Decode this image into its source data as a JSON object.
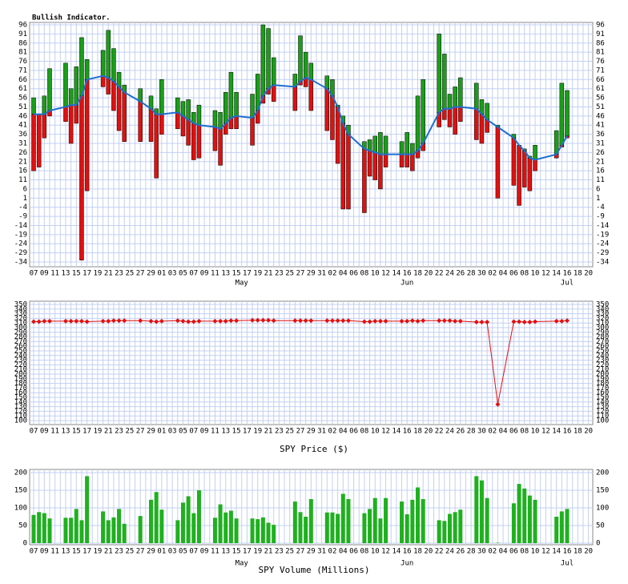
{
  "chart_data": [
    {
      "type": "range-bar",
      "title": "Bullish Indicator.",
      "categories": [
        "07",
        null,
        "09",
        null,
        "11",
        null,
        "13",
        null,
        "15",
        null,
        "17",
        null,
        "19",
        null,
        "21",
        null,
        "23",
        null,
        "25",
        null,
        "27",
        null,
        "29",
        null,
        "01",
        null,
        "03",
        null,
        "05",
        null,
        "07",
        null,
        "09",
        null,
        "11",
        null,
        "13",
        null,
        "15",
        null,
        "17",
        null,
        "19",
        null,
        "21",
        null,
        "23",
        null,
        "25",
        null,
        "27",
        null,
        "29",
        null,
        "31",
        null,
        "02",
        null,
        "04",
        null,
        "06",
        null,
        "08",
        null,
        "10",
        null,
        "12",
        null,
        "14",
        null,
        "16",
        null,
        "18",
        null,
        "20",
        null,
        "22",
        null,
        "24",
        null,
        "26",
        null,
        "28",
        null,
        "30",
        null,
        "02",
        null,
        "04",
        null,
        "06",
        null,
        "08",
        null,
        "10",
        null,
        "12",
        null,
        "14",
        null,
        "16",
        null,
        "18",
        null,
        "20"
      ],
      "months": [
        "May",
        "Jun",
        "Jul"
      ],
      "series": [
        {
          "color": "#1a9e1a",
          "values": [
            56,
            47,
            57,
            72,
            null,
            null,
            75,
            61,
            73,
            89,
            77,
            null,
            null,
            82,
            93,
            83,
            70,
            63,
            null,
            null,
            61,
            null,
            57,
            50,
            66,
            null,
            null,
            56,
            54,
            55,
            48,
            52,
            null,
            null,
            49,
            48,
            59,
            70,
            59,
            null,
            null,
            58,
            69,
            96,
            94,
            78,
            null,
            null,
            null,
            69,
            90,
            81,
            75,
            null,
            null,
            68,
            66,
            52,
            46,
            41,
            null,
            null,
            32,
            33,
            35,
            37,
            35,
            null,
            null,
            32,
            37,
            31,
            57,
            66,
            null,
            null,
            91,
            80,
            58,
            62,
            67,
            null,
            null,
            64,
            55,
            53,
            null,
            41,
            null,
            null,
            36,
            29,
            28,
            24,
            30,
            null,
            null,
            null,
            38,
            64,
            60,
            null,
            null,
            null,
            null
          ]
        },
        {
          "color": "#e01010",
          "values": [
            16,
            18,
            34,
            46,
            null,
            null,
            43,
            31,
            42,
            -33,
            5,
            null,
            null,
            62,
            58,
            49,
            38,
            32,
            null,
            null,
            32,
            null,
            32,
            12,
            36,
            null,
            null,
            39,
            35,
            30,
            22,
            23,
            null,
            null,
            27,
            19,
            36,
            39,
            39,
            null,
            null,
            30,
            42,
            53,
            58,
            54,
            null,
            null,
            null,
            49,
            63,
            62,
            49,
            null,
            null,
            38,
            33,
            20,
            -5,
            -5,
            null,
            null,
            -7,
            13,
            11,
            6,
            18,
            null,
            null,
            18,
            18,
            16,
            23,
            27,
            null,
            null,
            40,
            44,
            40,
            36,
            43,
            null,
            null,
            33,
            31,
            37,
            null,
            1,
            null,
            null,
            8,
            -3,
            7,
            5,
            16,
            null,
            null,
            null,
            23,
            29,
            34,
            null,
            null,
            null,
            null
          ]
        },
        {
          "color": "#1f6fd0",
          "values": [
            47,
            47,
            47,
            49,
            null,
            null,
            51,
            52,
            52,
            57,
            66,
            null,
            null,
            68,
            67,
            65,
            62,
            59,
            null,
            null,
            54,
            null,
            50,
            47,
            47,
            null,
            null,
            48,
            46,
            44,
            42,
            41,
            null,
            null,
            40,
            39,
            42,
            45,
            46,
            null,
            null,
            45,
            49,
            57,
            61,
            63,
            null,
            null,
            null,
            62,
            65,
            67,
            66,
            null,
            null,
            61,
            57,
            51,
            42,
            36,
            null,
            null,
            28,
            27,
            26,
            25,
            25,
            null,
            null,
            25,
            25,
            25,
            27,
            31,
            null,
            null,
            48,
            50,
            50,
            51,
            51,
            null,
            null,
            50,
            47,
            44,
            null,
            40,
            null,
            null,
            34,
            30,
            27,
            23,
            22,
            null,
            null,
            null,
            25,
            30,
            35,
            null,
            null,
            null,
            null
          ]
        }
      ],
      "ylim": [
        -34,
        96
      ],
      "yticks": [
        96,
        91,
        86,
        81,
        76,
        71,
        66,
        61,
        56,
        51,
        46,
        41,
        36,
        31,
        26,
        21,
        16,
        11,
        6,
        1,
        -4,
        -9,
        -14,
        -19,
        -24,
        -29,
        -34
      ],
      "grid": true
    },
    {
      "type": "line",
      "xlabel": "SPY Price ($)",
      "categories": [
        "07",
        null,
        "09",
        null,
        "11",
        null,
        "13",
        null,
        "15",
        null,
        "17",
        null,
        "19",
        null,
        "21",
        null,
        "23",
        null,
        "25",
        null,
        "27",
        null,
        "29",
        null,
        "01",
        null,
        "03",
        null,
        "05",
        null,
        "07",
        null,
        "09",
        null,
        "11",
        null,
        "13",
        null,
        "15",
        null,
        "17",
        null,
        "19",
        null,
        "21",
        null,
        "23",
        null,
        "25",
        null,
        "27",
        null,
        "29",
        null,
        "31",
        null,
        "02",
        null,
        "04",
        null,
        "06",
        null,
        "08",
        null,
        "10",
        null,
        "12",
        null,
        "14",
        null,
        "16",
        null,
        "18",
        null,
        "20",
        null,
        "22",
        null,
        "24",
        null,
        "26",
        null,
        "28",
        null,
        "30",
        null,
        "02",
        null,
        "04",
        null,
        "06",
        null,
        "08",
        null,
        "10",
        null,
        "12",
        null,
        "14",
        null,
        "16",
        null,
        "18",
        null,
        "20"
      ],
      "color": "#e01010",
      "values": [
        313,
        313,
        314,
        314,
        null,
        null,
        314,
        314,
        314,
        314,
        313,
        null,
        null,
        314,
        314,
        315,
        315,
        315,
        null,
        null,
        315,
        null,
        314,
        313,
        314,
        null,
        null,
        315,
        314,
        313,
        313,
        314,
        null,
        null,
        314,
        314,
        314,
        315,
        315,
        null,
        null,
        316,
        316,
        316,
        316,
        315,
        null,
        null,
        null,
        315,
        315,
        315,
        315,
        null,
        null,
        315,
        315,
        315,
        315,
        315,
        null,
        null,
        313,
        313,
        314,
        314,
        314,
        null,
        null,
        314,
        314,
        315,
        314,
        315,
        null,
        null,
        315,
        315,
        315,
        314,
        314,
        null,
        null,
        312,
        312,
        312,
        null,
        135,
        null,
        null,
        313,
        313,
        312,
        312,
        313,
        null,
        null,
        null,
        314,
        314,
        315,
        null,
        null,
        null,
        null
      ],
      "ylim": [
        100,
        350
      ],
      "yticks": [
        350,
        340,
        330,
        320,
        310,
        300,
        290,
        280,
        270,
        260,
        250,
        240,
        230,
        220,
        210,
        200,
        190,
        180,
        170,
        160,
        150,
        140,
        130,
        120,
        110,
        100
      ],
      "grid": true
    },
    {
      "type": "bar",
      "xlabel": "SPY Volume (Millions)",
      "categories": [
        "07",
        null,
        "09",
        null,
        "11",
        null,
        "13",
        null,
        "15",
        null,
        "17",
        null,
        "19",
        null,
        "21",
        null,
        "23",
        null,
        "25",
        null,
        "27",
        null,
        "29",
        null,
        "01",
        null,
        "03",
        null,
        "05",
        null,
        "07",
        null,
        "09",
        null,
        "11",
        null,
        "13",
        null,
        "15",
        null,
        "17",
        null,
        "19",
        null,
        "21",
        null,
        "23",
        null,
        "25",
        null,
        "27",
        null,
        "29",
        null,
        "31",
        null,
        "02",
        null,
        "04",
        null,
        "06",
        null,
        "08",
        null,
        "10",
        null,
        "12",
        null,
        "14",
        null,
        "16",
        null,
        "18",
        null,
        "20",
        null,
        "22",
        null,
        "24",
        null,
        "26",
        null,
        "28",
        null,
        "30",
        null,
        "02",
        null,
        "04",
        null,
        "06",
        null,
        "08",
        null,
        "10",
        null,
        "12",
        null,
        "14",
        null,
        "16",
        null,
        "18",
        null,
        "20"
      ],
      "months": [
        "May",
        "Jun",
        "Jul"
      ],
      "color": "#1fb01f",
      "values": [
        80,
        88,
        85,
        70,
        null,
        null,
        72,
        72,
        97,
        65,
        190,
        null,
        null,
        90,
        65,
        73,
        97,
        55,
        null,
        null,
        77,
        null,
        123,
        145,
        95,
        null,
        null,
        65,
        115,
        133,
        85,
        150,
        null,
        null,
        72,
        110,
        87,
        92,
        70,
        null,
        null,
        70,
        68,
        73,
        58,
        52,
        null,
        null,
        null,
        118,
        88,
        75,
        125,
        null,
        null,
        87,
        87,
        83,
        140,
        125,
        null,
        null,
        85,
        97,
        128,
        70,
        128,
        null,
        null,
        118,
        82,
        123,
        158,
        125,
        null,
        null,
        65,
        63,
        83,
        88,
        95,
        null,
        null,
        190,
        178,
        128,
        null,
        1,
        null,
        null,
        113,
        168,
        155,
        135,
        123,
        null,
        null,
        null,
        75,
        90,
        97,
        null,
        null,
        null,
        null
      ],
      "ylim": [
        0,
        200
      ],
      "yticks": [
        200,
        150,
        100,
        50,
        0
      ],
      "grid": true
    }
  ]
}
